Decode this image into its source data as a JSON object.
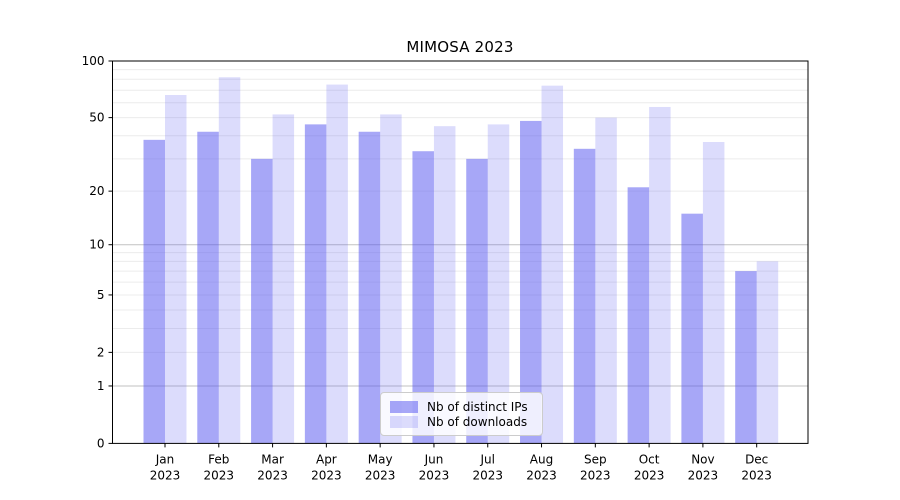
{
  "chart_data": {
    "type": "bar",
    "title": "MIMOSA 2023",
    "categories": [
      "Jan",
      "Feb",
      "Mar",
      "Apr",
      "May",
      "Jun",
      "Jul",
      "Aug",
      "Sep",
      "Oct",
      "Nov",
      "Dec"
    ],
    "x_year_label": "2023",
    "series": [
      {
        "name": "Nb of distinct IPs",
        "color": "#5050f0",
        "alpha": 0.5,
        "values": [
          38,
          42,
          30,
          46,
          42,
          33,
          30,
          48,
          34,
          21,
          15,
          7
        ]
      },
      {
        "name": "Nb of downloads",
        "color": "#5050f0",
        "alpha": 0.2,
        "values": [
          66,
          82,
          52,
          75,
          52,
          45,
          46,
          74,
          50,
          57,
          37,
          8
        ]
      }
    ],
    "yscale": "log1p",
    "ylim": [
      0,
      100
    ],
    "ytick_values": [
      0,
      1,
      2,
      5,
      10,
      20,
      50,
      100
    ],
    "ytick_labels": [
      "0",
      "1",
      "2",
      "5",
      "10",
      "20",
      "50",
      "100"
    ],
    "grid": {
      "minor_values": [
        2,
        3,
        4,
        5,
        6,
        7,
        8,
        9,
        20,
        30,
        40,
        50,
        60,
        70,
        80,
        90
      ],
      "major_values": [
        1,
        10
      ],
      "minor_color": "#ececec",
      "major_color": "#c2c2c2"
    },
    "legend": {
      "position": "lower center",
      "items": [
        "Nb of distinct IPs",
        "Nb of downloads"
      ]
    },
    "axis_color": "#000000",
    "background": "#ffffff"
  }
}
